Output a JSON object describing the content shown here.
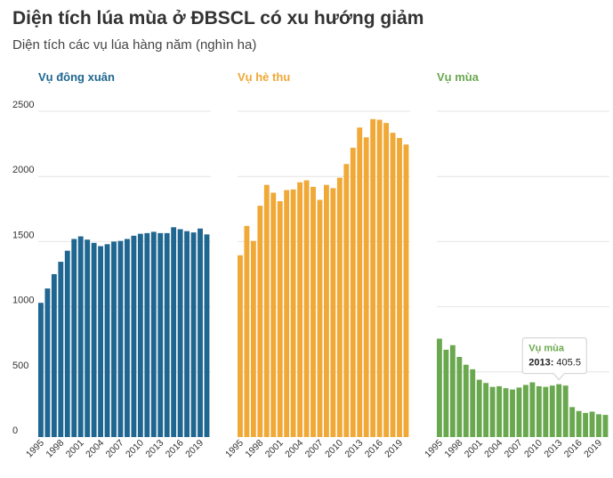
{
  "title": "Diện tích lúa mùa ở ĐBSCL có xu hướng giảm",
  "subtitle": "Diện tích các vụ lúa hàng năm (nghìn ha)",
  "chart_data": {
    "type": "bar",
    "ylim": [
      0,
      2500
    ],
    "yticks": [
      0,
      500,
      1000,
      1500,
      2000,
      2500
    ],
    "grid": true,
    "x": [
      1995,
      1996,
      1997,
      1998,
      1999,
      2000,
      2001,
      2002,
      2003,
      2004,
      2005,
      2006,
      2007,
      2008,
      2009,
      2010,
      2011,
      2012,
      2013,
      2014,
      2015,
      2016,
      2017,
      2018,
      2019,
      2020
    ],
    "xtick_labels": [
      "1995",
      "1998",
      "2001",
      "2004",
      "2007",
      "2010",
      "2013",
      "2016",
      "2019"
    ],
    "panels": [
      {
        "name": "Vụ đông xuân",
        "color": "#1f6690",
        "values": [
          1030,
          1140,
          1250,
          1345,
          1430,
          1520,
          1540,
          1515,
          1490,
          1465,
          1480,
          1500,
          1505,
          1520,
          1545,
          1560,
          1565,
          1575,
          1565,
          1565,
          1610,
          1595,
          1580,
          1570,
          1600,
          1555
        ]
      },
      {
        "name": "Vụ hè thu",
        "color": "#f0a836",
        "values": [
          1395,
          1620,
          1505,
          1775,
          1935,
          1875,
          1810,
          1895,
          1900,
          1955,
          1970,
          1920,
          1820,
          1935,
          1910,
          1990,
          2095,
          2220,
          2375,
          2300,
          2440,
          2435,
          2410,
          2335,
          2295,
          2245
        ]
      },
      {
        "name": "Vụ mùa",
        "color": "#6aa84f",
        "values": [
          755,
          670,
          705,
          615,
          555,
          520,
          440,
          415,
          385,
          390,
          375,
          365,
          380,
          400,
          420,
          390,
          385,
          395,
          405.5,
          395,
          230,
          200,
          185,
          195,
          175,
          170
        ]
      }
    ],
    "annotation": {
      "panel": "Vụ mùa",
      "title": "Vụ mùa",
      "year": "2013",
      "value": "405.5"
    }
  }
}
